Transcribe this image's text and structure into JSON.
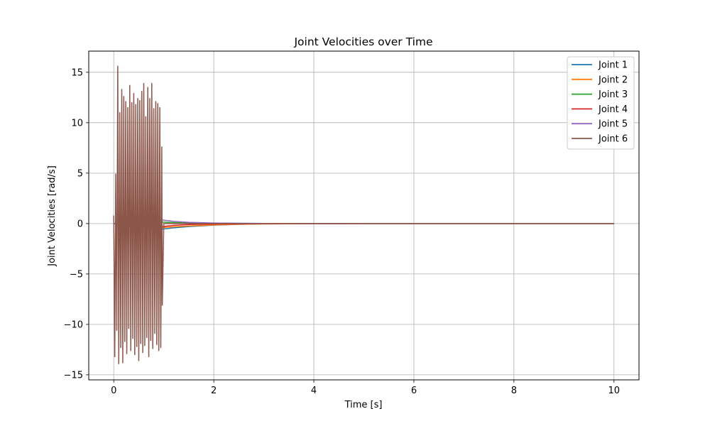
{
  "chart_data": {
    "type": "line",
    "title": "Joint Velocities over Time",
    "xlabel": "Time [s]",
    "ylabel": "Joint Velocities [rad/s]",
    "xlim": [
      -0.5,
      10.5
    ],
    "ylim": [
      -15.5,
      17.1
    ],
    "xticks": [
      0,
      2,
      4,
      6,
      8,
      10
    ],
    "yticks": [
      -15,
      -10,
      -5,
      0,
      5,
      10,
      15
    ],
    "grid": true,
    "legend_position": "top-right",
    "series": [
      {
        "name": "Joint 1",
        "color": "#1f77b4",
        "x": [
          0,
          0.97,
          1.2,
          1.5,
          2.0,
          2.5,
          3.0,
          4.0,
          6.0,
          8.0,
          10.0
        ],
        "y": [
          0,
          -0.55,
          -0.42,
          -0.3,
          -0.16,
          -0.08,
          -0.04,
          -0.01,
          0,
          0,
          0
        ]
      },
      {
        "name": "Joint 2",
        "color": "#ff7f0e",
        "x": [
          0,
          0.97,
          1.2,
          1.5,
          2.0,
          2.5,
          3.0,
          4.0,
          6.0,
          8.0,
          10.0
        ],
        "y": [
          0,
          -0.4,
          -0.32,
          -0.24,
          -0.14,
          -0.07,
          -0.04,
          -0.01,
          0,
          0,
          0
        ]
      },
      {
        "name": "Joint 3",
        "color": "#2ca02c",
        "x": [
          0,
          0.97,
          1.2,
          1.5,
          2.0,
          3.0,
          4.0,
          6.0,
          8.0,
          10.0
        ],
        "y": [
          0,
          0.15,
          0.1,
          0.06,
          0.03,
          0.01,
          0,
          0,
          0,
          0
        ]
      },
      {
        "name": "Joint 4",
        "color": "#d62728",
        "x": [
          0,
          0.97,
          1.2,
          1.5,
          2.0,
          3.0,
          4.0,
          6.0,
          8.0,
          10.0
        ],
        "y": [
          0,
          -0.3,
          -0.18,
          -0.1,
          -0.05,
          -0.01,
          0,
          0,
          0,
          0
        ]
      },
      {
        "name": "Joint 5",
        "color": "#9467bd",
        "x": [
          0,
          0.97,
          1.2,
          1.5,
          2.0,
          3.0,
          4.0,
          6.0,
          8.0,
          10.0
        ],
        "y": [
          0,
          0.35,
          0.22,
          0.12,
          0.05,
          0.01,
          0,
          0,
          0,
          0
        ]
      },
      {
        "name": "Joint 6",
        "color": "#8c564b",
        "x": [
          0,
          0.02,
          0.04,
          0.06,
          0.08,
          0.1,
          0.12,
          0.14,
          0.16,
          0.18,
          0.2,
          0.22,
          0.24,
          0.26,
          0.28,
          0.3,
          0.32,
          0.34,
          0.36,
          0.38,
          0.4,
          0.42,
          0.44,
          0.46,
          0.48,
          0.5,
          0.52,
          0.54,
          0.56,
          0.58,
          0.6,
          0.62,
          0.64,
          0.66,
          0.68,
          0.7,
          0.72,
          0.74,
          0.76,
          0.78,
          0.8,
          0.82,
          0.84,
          0.86,
          0.88,
          0.9,
          0.92,
          0.94,
          0.96,
          0.97,
          1.0,
          1.5,
          2.0,
          4.0,
          6.0,
          8.0,
          10.0
        ],
        "y": [
          0.8,
          -13.2,
          4.9,
          -10.6,
          15.6,
          -13.9,
          11.0,
          -12.3,
          13.3,
          -13.8,
          12.6,
          -11.7,
          12.1,
          -12.9,
          11.5,
          -10.4,
          13.7,
          -12.6,
          12.0,
          -11.4,
          12.9,
          -13.0,
          11.8,
          -12.2,
          12.4,
          -13.6,
          12.2,
          -11.9,
          13.1,
          -12.8,
          13.9,
          -12.1,
          10.6,
          -11.3,
          13.5,
          -13.2,
          12.4,
          -11.6,
          13.9,
          -12.4,
          11.4,
          -10.9,
          12.1,
          -12.0,
          11.9,
          -12.6,
          11.5,
          -12.3,
          7.6,
          -8.1,
          0,
          0,
          0,
          0,
          0,
          0,
          0
        ]
      }
    ]
  }
}
